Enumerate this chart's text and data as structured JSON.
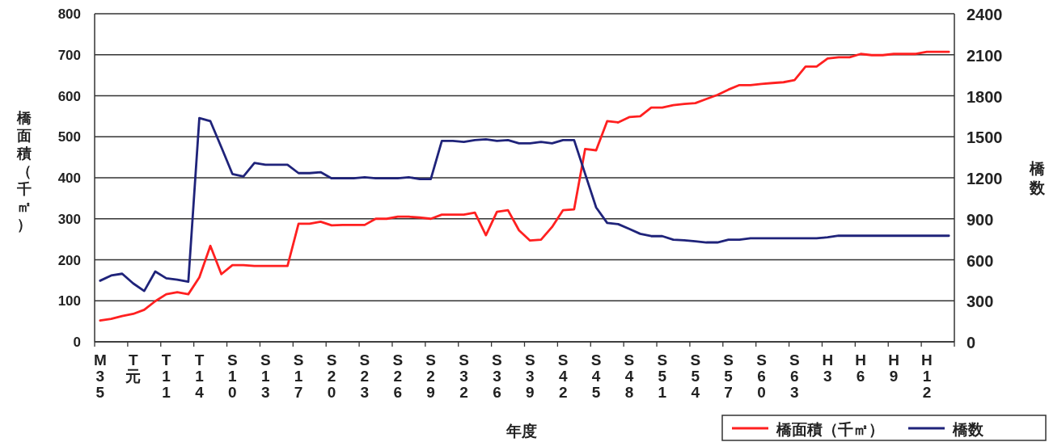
{
  "chart_data": {
    "type": "line",
    "xlabel": "年度",
    "ylabel": "橋面積（千㎡）",
    "y2label": "橋数",
    "categories": [
      "M35",
      null,
      null,
      "T元",
      null,
      null,
      "T11",
      null,
      null,
      "T14",
      null,
      null,
      "S10",
      null,
      null,
      "S13",
      null,
      null,
      "S17",
      null,
      null,
      "S20",
      null,
      null,
      "S23",
      null,
      null,
      "S26",
      null,
      null,
      "S29",
      null,
      null,
      "S32",
      null,
      null,
      "S36",
      null,
      null,
      "S39",
      null,
      null,
      "S42",
      null,
      null,
      "S45",
      null,
      null,
      "S48",
      null,
      null,
      "S51",
      null,
      null,
      "S54",
      null,
      null,
      "S57",
      null,
      null,
      "S60",
      null,
      null,
      "S63",
      null,
      null,
      "H3",
      null,
      null,
      "H6",
      null,
      null,
      "H9",
      null,
      null,
      "H12",
      null,
      null
    ],
    "series": [
      {
        "name": "橋面積（千㎡）",
        "color": "#ff2020",
        "values": [
          52,
          56,
          63,
          68,
          78,
          99,
          116,
          121,
          116,
          157,
          234,
          165,
          187,
          187,
          185,
          185,
          185,
          185,
          288,
          288,
          293,
          284,
          285,
          285,
          285,
          300,
          300,
          305,
          305,
          303,
          300,
          310,
          310,
          310,
          315,
          260,
          317,
          321,
          272,
          247,
          249,
          280,
          321,
          323,
          470,
          467,
          538,
          535,
          548,
          550,
          571,
          571,
          577,
          580,
          582,
          592,
          602,
          615,
          626,
          626,
          629,
          631,
          633,
          638,
          671,
          671,
          691,
          694,
          694,
          702,
          699,
          699,
          702,
          702,
          702,
          707,
          707,
          707
        ]
      },
      {
        "name": "橋数",
        "color": "#1f237a",
        "axis": "y2",
        "values": [
          447,
          485,
          498,
          427,
          372,
          514,
          465,
          455,
          439,
          1637,
          1614,
          1423,
          1228,
          1210,
          1308,
          1295,
          1295,
          1295,
          1234,
          1234,
          1241,
          1196,
          1196,
          1196,
          1204,
          1196,
          1196,
          1196,
          1204,
          1190,
          1190,
          1470,
          1470,
          1462,
          1476,
          1482,
          1470,
          1476,
          1452,
          1452,
          1462,
          1452,
          1476,
          1476,
          1229,
          983,
          870,
          861,
          826,
          790,
          773,
          773,
          747,
          743,
          735,
          727,
          727,
          747,
          747,
          757,
          757,
          757,
          757,
          757,
          757,
          757,
          765,
          776,
          776,
          776,
          776,
          776,
          776,
          776,
          776,
          776,
          776,
          776
        ]
      }
    ],
    "ylim": [
      0,
      800
    ],
    "yticks": [
      0,
      100,
      200,
      300,
      400,
      500,
      600,
      700,
      800
    ],
    "y2lim": [
      0,
      2400
    ],
    "y2ticks": [
      0,
      300,
      600,
      900,
      1200,
      1500,
      1800,
      2100,
      2400
    ],
    "grid": "y",
    "legend": "bottom right",
    "line_style": "solid"
  }
}
